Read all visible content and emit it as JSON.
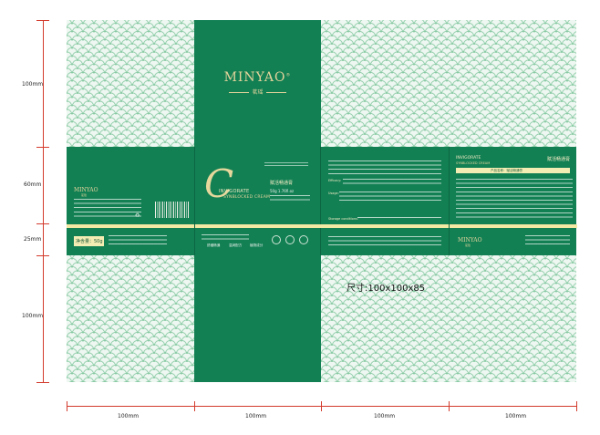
{
  "dims": {
    "left": [
      "100mm",
      "60mm",
      "25mm",
      "100mm"
    ],
    "bottom": [
      "100mm",
      "100mm",
      "100mm",
      "100mm"
    ]
  },
  "brand": {
    "logo": "MINYAO",
    "registered": "®",
    "chinese_name": "茗瑶"
  },
  "product": {
    "series": "INVIGORATE",
    "english_name": "SYNBLOCKED CREAM",
    "chinese_name": "赋活畅通膏",
    "weight": "50g 1.76fl.oz",
    "net_content_label": "净含量：50g",
    "big_letter": "C",
    "back_series": "INVIGORATE",
    "back_english_name": "SYNBLOCKED CREAM",
    "back_chinese_name": "赋活畅通膏",
    "back_product_label": "产品名称：赋活畅通膏"
  },
  "section_headings": {
    "efficacy": "Efficacy:",
    "usage": "Usage:",
    "storage": "Storage conditions:"
  },
  "features": [
    "舒缓畅通",
    "温润配方",
    "植物成分"
  ],
  "size_label": "尺寸:100x100x85",
  "colors": {
    "green": "#138054",
    "pattern_bg": "#eef7f1",
    "pattern_line": "#7cc49a",
    "gold": "#e3d39b",
    "cream": "#f4edb3",
    "dim_red": "#d33a2c"
  }
}
